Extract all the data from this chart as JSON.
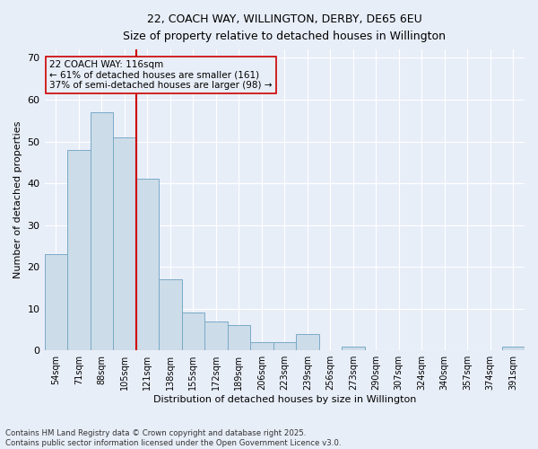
{
  "title_line1": "22, COACH WAY, WILLINGTON, DERBY, DE65 6EU",
  "title_line2": "Size of property relative to detached houses in Willington",
  "xlabel": "Distribution of detached houses by size in Willington",
  "ylabel": "Number of detached properties",
  "categories": [
    "54sqm",
    "71sqm",
    "88sqm",
    "105sqm",
    "121sqm",
    "138sqm",
    "155sqm",
    "172sqm",
    "189sqm",
    "206sqm",
    "223sqm",
    "239sqm",
    "256sqm",
    "273sqm",
    "290sqm",
    "307sqm",
    "324sqm",
    "340sqm",
    "357sqm",
    "374sqm",
    "391sqm"
  ],
  "values": [
    23,
    48,
    57,
    51,
    41,
    17,
    9,
    7,
    6,
    2,
    2,
    4,
    0,
    1,
    0,
    0,
    0,
    0,
    0,
    0,
    1
  ],
  "bar_color": "#ccdce8",
  "bar_edge_color": "#7aaac8",
  "bg_color": "#e8eef8",
  "grid_color": "#ffffff",
  "vline_color": "#cc0000",
  "annotation_text": "22 COACH WAY: 116sqm\n← 61% of detached houses are smaller (161)\n37% of semi-detached houses are larger (98) →",
  "annotation_box_color": "#cc0000",
  "ylim": [
    0,
    72
  ],
  "yticks": [
    0,
    10,
    20,
    30,
    40,
    50,
    60,
    70
  ],
  "footnote_line1": "Contains HM Land Registry data © Crown copyright and database right 2025.",
  "footnote_line2": "Contains public sector information licensed under the Open Government Licence v3.0."
}
